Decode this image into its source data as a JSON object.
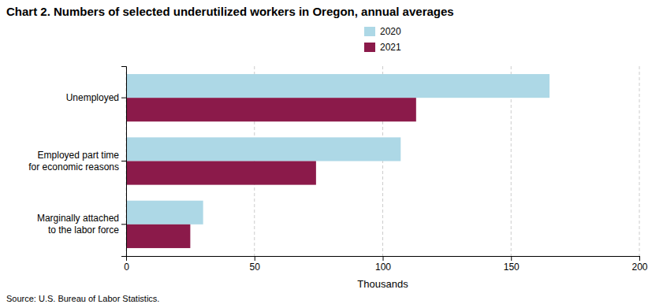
{
  "chart_data": {
    "type": "bar",
    "orientation": "horizontal",
    "title": "Chart 2. Numbers of selected underutilized workers in Oregon, annual averages",
    "categories": [
      "Unemployed",
      "Employed part time\nfor economic reasons",
      "Marginally attached\nto the labor force"
    ],
    "series": [
      {
        "name": "2020",
        "color": "#ADD8E6",
        "values": [
          165,
          107,
          30
        ]
      },
      {
        "name": "2021",
        "color": "#8B1A4A",
        "values": [
          113,
          74,
          25
        ]
      }
    ],
    "xlabel": "Thousands",
    "xlim": [
      0,
      200
    ],
    "xticks": [
      0,
      50,
      100,
      150,
      200
    ],
    "grid": true,
    "legend": "top",
    "annotations": [
      "Source: U.S. Bureau of Labor Statistics."
    ]
  }
}
